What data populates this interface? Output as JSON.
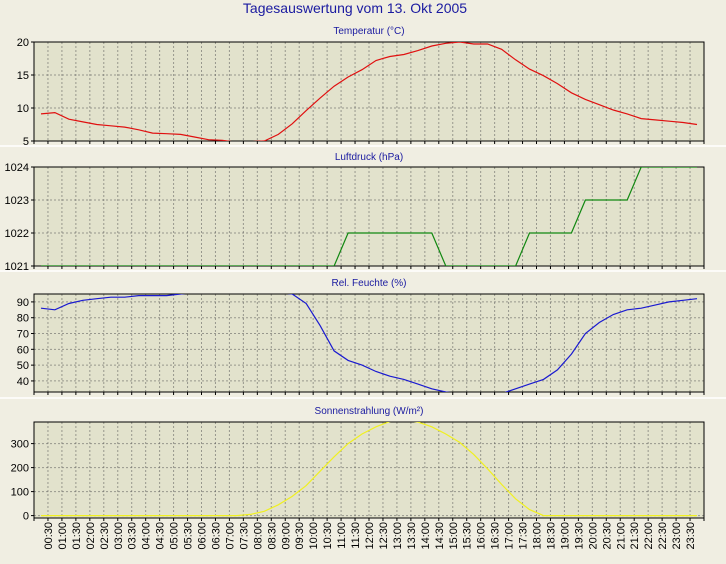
{
  "page": {
    "title": "Tagesauswertung vom 13. Okt 2005",
    "background": "#f0eee2",
    "plot_background": "#e2e2cc",
    "title_color": "#1a1aa0",
    "separator_color": "#ffffff"
  },
  "chart_data": [
    {
      "id": "temperature",
      "type": "line",
      "title": "Temperatur (°C)",
      "color": "#e01010",
      "ylim": [
        5,
        20
      ],
      "yticks": [
        5,
        10,
        15,
        20
      ],
      "x": [
        "00:00",
        "00:30",
        "01:00",
        "01:30",
        "02:00",
        "02:30",
        "03:00",
        "03:30",
        "04:00",
        "04:30",
        "05:00",
        "05:30",
        "06:00",
        "06:30",
        "07:00",
        "07:30",
        "08:00",
        "08:30",
        "09:00",
        "09:30",
        "10:00",
        "10:30",
        "11:00",
        "11:30",
        "12:00",
        "12:30",
        "13:00",
        "13:30",
        "14:00",
        "14:30",
        "15:00",
        "15:30",
        "16:00",
        "16:30",
        "17:00",
        "17:30",
        "18:00",
        "18:30",
        "19:00",
        "19:30",
        "20:00",
        "20:30",
        "21:00",
        "21:30",
        "22:00",
        "22:30",
        "23:00",
        "23:30"
      ],
      "values": [
        9.1,
        9.3,
        8.3,
        7.9,
        7.5,
        7.3,
        7.1,
        6.7,
        6.2,
        6.1,
        6.0,
        5.6,
        5.2,
        5.1,
        4.8,
        4.9,
        5.0,
        6.0,
        7.6,
        9.6,
        11.5,
        13.3,
        14.7,
        15.8,
        17.2,
        17.8,
        18.1,
        18.7,
        19.4,
        19.8,
        20.0,
        19.7,
        19.7,
        18.9,
        17.3,
        15.9,
        14.9,
        13.7,
        12.3,
        11.3,
        10.5,
        9.7,
        9.1,
        8.4,
        8.2,
        8.0,
        7.8,
        7.5
      ],
      "grid": true
    },
    {
      "id": "pressure",
      "type": "line",
      "title": "Luftdruck (hPa)",
      "color": "#118811",
      "ylim": [
        1021,
        1024
      ],
      "yticks": [
        1021,
        1022,
        1023,
        1024
      ],
      "x": [
        "00:00",
        "00:30",
        "01:00",
        "01:30",
        "02:00",
        "02:30",
        "03:00",
        "03:30",
        "04:00",
        "04:30",
        "05:00",
        "05:30",
        "06:00",
        "06:30",
        "07:00",
        "07:30",
        "08:00",
        "08:30",
        "09:00",
        "09:30",
        "10:00",
        "10:30",
        "11:00",
        "11:30",
        "12:00",
        "12:30",
        "13:00",
        "13:30",
        "14:00",
        "14:30",
        "15:00",
        "15:30",
        "16:00",
        "16:30",
        "17:00",
        "17:30",
        "18:00",
        "18:30",
        "19:00",
        "19:30",
        "20:00",
        "20:30",
        "21:00",
        "21:30",
        "22:00",
        "22:30",
        "23:00",
        "23:30"
      ],
      "values": [
        1021,
        1021,
        1021,
        1021,
        1021,
        1021,
        1021,
        1021,
        1021,
        1021,
        1021,
        1021,
        1021,
        1021,
        1021,
        1021,
        1021,
        1021,
        1021,
        1021,
        1021,
        1021,
        1022,
        1022,
        1022,
        1022,
        1022,
        1022,
        1022,
        1021,
        1021,
        1021,
        1021,
        1021,
        1021,
        1022,
        1022,
        1022,
        1022,
        1023,
        1023,
        1023,
        1023,
        1024,
        1024,
        1024,
        1024,
        1024
      ],
      "grid": true
    },
    {
      "id": "humidity",
      "type": "line",
      "title": "Rel. Feuchte (%)",
      "color": "#1a1ad0",
      "ylim": [
        33,
        95
      ],
      "yticks": [
        40,
        50,
        60,
        70,
        80,
        90
      ],
      "x": [
        "00:00",
        "00:30",
        "01:00",
        "01:30",
        "02:00",
        "02:30",
        "03:00",
        "03:30",
        "04:00",
        "04:30",
        "05:00",
        "05:30",
        "06:00",
        "06:30",
        "07:00",
        "07:30",
        "08:00",
        "08:30",
        "09:00",
        "09:30",
        "10:00",
        "10:30",
        "11:00",
        "11:30",
        "12:00",
        "12:30",
        "13:00",
        "13:30",
        "14:00",
        "14:30",
        "15:00",
        "15:30",
        "16:00",
        "16:30",
        "17:00",
        "17:30",
        "18:00",
        "18:30",
        "19:00",
        "19:30",
        "20:00",
        "20:30",
        "21:00",
        "21:30",
        "22:00",
        "22:30",
        "23:00",
        "23:30"
      ],
      "values": [
        86,
        85,
        89,
        91,
        92,
        93,
        93,
        94,
        94,
        94,
        95,
        96,
        96,
        96,
        96,
        96,
        96,
        96,
        95,
        89,
        75,
        59,
        53,
        50,
        46,
        43,
        41,
        38,
        35,
        33,
        32,
        32,
        31,
        32,
        35,
        38,
        41,
        47,
        57,
        70,
        77,
        82,
        85,
        86,
        88,
        90,
        91,
        92
      ],
      "grid": true
    },
    {
      "id": "radiation",
      "type": "line",
      "title": "Sonnenstrahlung (W/m²)",
      "color": "#f0f020",
      "ylim": [
        -10,
        390
      ],
      "yticks": [
        0,
        100,
        200,
        300
      ],
      "x": [
        "00:00",
        "00:30",
        "01:00",
        "01:30",
        "02:00",
        "02:30",
        "03:00",
        "03:30",
        "04:00",
        "04:30",
        "05:00",
        "05:30",
        "06:00",
        "06:30",
        "07:00",
        "07:30",
        "08:00",
        "08:30",
        "09:00",
        "09:30",
        "10:00",
        "10:30",
        "11:00",
        "11:30",
        "12:00",
        "12:30",
        "13:00",
        "13:30",
        "14:00",
        "14:30",
        "15:00",
        "15:30",
        "16:00",
        "16:30",
        "17:00",
        "17:30",
        "18:00",
        "18:30",
        "19:00",
        "19:30",
        "20:00",
        "20:30",
        "21:00",
        "21:30",
        "22:00",
        "22:30",
        "23:00",
        "23:30"
      ],
      "values": [
        0,
        0,
        0,
        0,
        0,
        0,
        0,
        0,
        0,
        0,
        0,
        0,
        0,
        0,
        0,
        5,
        18,
        45,
        80,
        125,
        185,
        245,
        300,
        340,
        370,
        392,
        398,
        390,
        370,
        340,
        305,
        255,
        195,
        130,
        70,
        25,
        0,
        0,
        0,
        0,
        0,
        0,
        0,
        0,
        0,
        0,
        0,
        0
      ],
      "grid": true
    }
  ],
  "x_axis": {
    "tick_labels": [
      "00:30",
      "01:00",
      "01:30",
      "02:00",
      "02:30",
      "03:00",
      "03:30",
      "04:00",
      "04:30",
      "05:00",
      "05:30",
      "06:00",
      "06:30",
      "07:00",
      "07:30",
      "08:00",
      "08:30",
      "09:00",
      "09:30",
      "10:00",
      "10:30",
      "11:00",
      "11:30",
      "12:00",
      "12:30",
      "13:00",
      "13:30",
      "14:00",
      "14:30",
      "15:00",
      "15:30",
      "16:00",
      "16:30",
      "17:00",
      "17:30",
      "18:00",
      "18:30",
      "19:00",
      "19:30",
      "20:00",
      "20:30",
      "21:00",
      "21:30",
      "22:00",
      "22:30",
      "23:00",
      "23:30"
    ]
  }
}
